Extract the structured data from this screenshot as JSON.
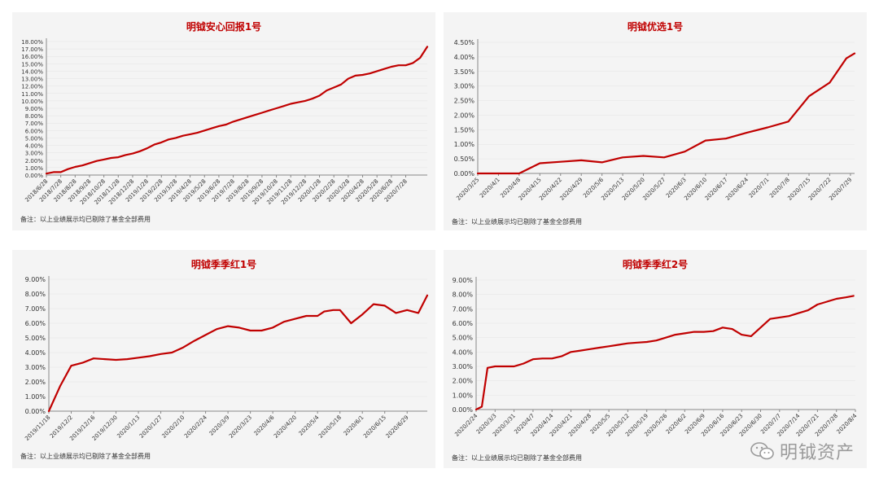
{
  "colors": {
    "series": "#c00000",
    "title": "#c00000",
    "panel_bg": "#f4f4f4"
  },
  "watermark": {
    "text": "明钺资产",
    "icon": "wechat-icon"
  },
  "chart_data": [
    {
      "type": "line",
      "title": "明钺安心回报1号",
      "ylim": [
        0,
        0.18
      ],
      "yticks": [
        "0.00%",
        "1.00%",
        "2.00%",
        "3.00%",
        "4.00%",
        "5.00%",
        "6.00%",
        "7.00%",
        "8.00%",
        "9.00%",
        "10.00%",
        "11.00%",
        "12.00%",
        "13.00%",
        "14.00%",
        "15.00%",
        "16.00%",
        "17.00%",
        "18.00%"
      ],
      "x_tick_labels": [
        "2018/6/28",
        "2018/7/28",
        "2018/8/28",
        "2018/9/28",
        "2018/10/28",
        "2018/11/28",
        "2018/12/28",
        "2019/1/28",
        "2019/2/28",
        "2019/3/28",
        "2019/4/28",
        "2019/5/28",
        "2019/6/28",
        "2019/7/28",
        "2019/8/28",
        "2019/9/28",
        "2019/10/28",
        "2019/11/28",
        "2019/12/28",
        "2020/1/28",
        "2020/2/28",
        "2020/3/28",
        "2020/4/28",
        "2020/5/28",
        "2020/6/28",
        "2020/7/28"
      ],
      "x": [
        0,
        0.5,
        1,
        1.5,
        2,
        2.5,
        3,
        3.5,
        4,
        4.5,
        5,
        5.5,
        6,
        6.5,
        7,
        7.5,
        8,
        8.5,
        9,
        9.5,
        10,
        10.5,
        11,
        11.5,
        12,
        12.5,
        13,
        13.5,
        14,
        14.5,
        15,
        15.5,
        16,
        16.5,
        17,
        17.5,
        18,
        18.5,
        19,
        19.5,
        20,
        20.5,
        21,
        21.5,
        22,
        22.5,
        23,
        23.5,
        24,
        24.5,
        25,
        25.5,
        26,
        26.5
      ],
      "values": [
        0.002,
        0.004,
        0.004,
        0.008,
        0.011,
        0.013,
        0.016,
        0.019,
        0.021,
        0.023,
        0.024,
        0.027,
        0.029,
        0.032,
        0.036,
        0.041,
        0.044,
        0.048,
        0.05,
        0.053,
        0.055,
        0.057,
        0.06,
        0.063,
        0.066,
        0.068,
        0.072,
        0.075,
        0.078,
        0.081,
        0.084,
        0.087,
        0.09,
        0.093,
        0.096,
        0.098,
        0.1,
        0.103,
        0.107,
        0.114,
        0.118,
        0.122,
        0.13,
        0.134,
        0.135,
        0.137,
        0.14,
        0.143,
        0.146,
        0.148,
        0.148,
        0.151,
        0.158,
        0.173
      ],
      "note": "备注：以上业绩展示均已剔除了基金全部费用"
    },
    {
      "type": "line",
      "title": "明钺优选1号",
      "ylim": [
        0,
        0.045
      ],
      "yticks": [
        "0.00%",
        "0.50%",
        "1.00%",
        "1.50%",
        "2.00%",
        "2.50%",
        "3.00%",
        "3.50%",
        "4.00%",
        "4.50%"
      ],
      "x_tick_labels": [
        "2020/3/25",
        "2020/4/1",
        "2020/4/8",
        "2020/4/15",
        "2020/4/22",
        "2020/4/29",
        "2020/5/6",
        "2020/5/13",
        "2020/5/20",
        "2020/5/27",
        "2020/6/3",
        "2020/6/10",
        "2020/6/17",
        "2020/6/24",
        "2020/7/1",
        "2020/7/8",
        "2020/7/15",
        "2020/7/22",
        "2020/7/29"
      ],
      "x": [
        0,
        1,
        2,
        3,
        4,
        5,
        6,
        7,
        8,
        9,
        10,
        11,
        12,
        13,
        14,
        15,
        16,
        17,
        17.8
      ],
      "values": [
        0,
        0,
        0,
        0.0035,
        0.004,
        0.0045,
        0.0038,
        0.0055,
        0.006,
        0.0055,
        0.0075,
        0.0113,
        0.012,
        0.014,
        0.0158,
        0.0178,
        0.0265,
        0.0312,
        0.0395
      ],
      "values_extra": [
        0.0412
      ],
      "note": "备注：以上业绩展示均已剔除了基金全部费用"
    },
    {
      "type": "line",
      "title": "明钺季季红1号",
      "ylim": [
        0,
        0.09
      ],
      "yticks": [
        "0.00%",
        "1.00%",
        "2.00%",
        "3.00%",
        "4.00%",
        "5.00%",
        "6.00%",
        "7.00%",
        "8.00%",
        "9.00%"
      ],
      "x_tick_labels": [
        "2019/11/18",
        "2019/12/2",
        "2019/12/16",
        "2019/12/30",
        "2020/1/13",
        "2020/1/27",
        "2020/2/10",
        "2020/2/24",
        "2020/3/9",
        "2020/3/23",
        "2020/4/6",
        "2020/4/20",
        "2020/5/4",
        "2020/5/18",
        "2020/6/1",
        "2020/6/15",
        "2020/6/29"
      ],
      "x": [
        0,
        0.5,
        1,
        1.5,
        2,
        2.5,
        3,
        3.5,
        4,
        4.5,
        5,
        5.5,
        6,
        6.5,
        7,
        7.5,
        8,
        8.5,
        9,
        9.5,
        10,
        10.5,
        11,
        11.5,
        12,
        12.3,
        12.7,
        13,
        13.5,
        14,
        14.5,
        15,
        15.5,
        16,
        16.5,
        16.9
      ],
      "values": [
        0,
        0.017,
        0.031,
        0.033,
        0.036,
        0.0355,
        0.035,
        0.0355,
        0.0365,
        0.0375,
        0.039,
        0.04,
        0.0435,
        0.048,
        0.052,
        0.056,
        0.058,
        0.057,
        0.055,
        0.055,
        0.057,
        0.061,
        0.063,
        0.065,
        0.065,
        0.068,
        0.069,
        0.069,
        0.06,
        0.066,
        0.073,
        0.072,
        0.067,
        0.069,
        0.067,
        0.079
      ],
      "note": "备注：以上业绩展示均已剔除了基金全部费用"
    },
    {
      "type": "line",
      "title": "明钺季季红2号",
      "ylim": [
        0,
        0.09
      ],
      "yticks": [
        "0.00%",
        "1.00%",
        "2.00%",
        "3.00%",
        "4.00%",
        "5.00%",
        "6.00%",
        "7.00%",
        "8.00%",
        "9.00%"
      ],
      "x_tick_labels": [
        "2020/2/24",
        "2020/3/3",
        "2020/3/31",
        "2020/4/7",
        "2020/4/14",
        "2020/4/21",
        "2020/4/28",
        "2020/5/5",
        "2020/5/12",
        "2020/5/19",
        "2020/5/26",
        "2020/6/2",
        "2020/6/9",
        "2020/6/16",
        "2020/6/23",
        "2020/6/30",
        "2020/7/7",
        "2020/7/14",
        "2020/7/21",
        "2020/7/28",
        "2020/8/4"
      ],
      "x": [
        0,
        0.3,
        0.6,
        1,
        1.5,
        2,
        2.5,
        3,
        3.5,
        4,
        4.5,
        5,
        5.5,
        6,
        6.5,
        7,
        7.5,
        8,
        8.5,
        9,
        9.5,
        10,
        10.5,
        11,
        11.5,
        12,
        12.5,
        13,
        13.5,
        14,
        14.5,
        15,
        15.5,
        16,
        16.5,
        17,
        17.5,
        18,
        18.5,
        19,
        19.5,
        19.9
      ],
      "values": [
        0,
        0.002,
        0.029,
        0.03,
        0.03,
        0.03,
        0.032,
        0.035,
        0.0355,
        0.0355,
        0.037,
        0.04,
        0.041,
        0.042,
        0.043,
        0.044,
        0.045,
        0.046,
        0.0465,
        0.047,
        0.048,
        0.05,
        0.052,
        0.053,
        0.054,
        0.054,
        0.0545,
        0.057,
        0.056,
        0.052,
        0.051,
        0.057,
        0.063,
        0.064,
        0.065,
        0.067,
        0.069,
        0.073,
        0.075,
        0.077,
        0.078,
        0.079
      ],
      "note": "备注：以上业绩展示均已剔除了基金全部费用"
    }
  ]
}
